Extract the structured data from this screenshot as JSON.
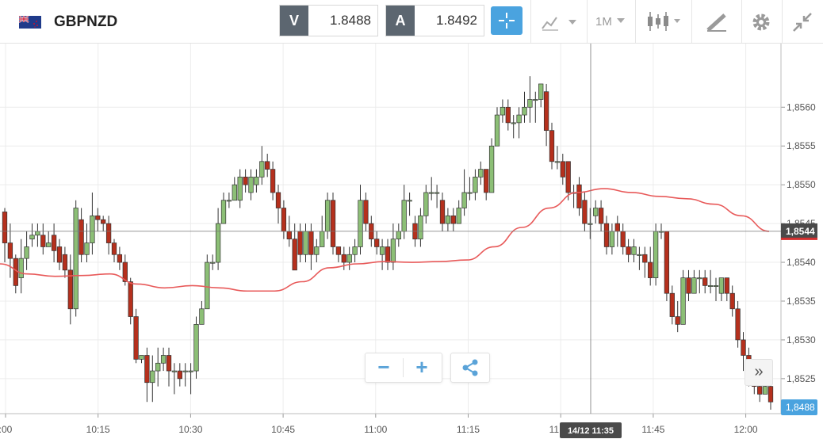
{
  "instrument": {
    "symbol": "GBPNZD",
    "flag_icon": "uk-nz-flag-icon"
  },
  "quote": {
    "sell": {
      "tag": "V",
      "value": "1.8488"
    },
    "buy": {
      "tag": "A",
      "value": "1.8492"
    }
  },
  "toolbar": {
    "timeframe": "1M",
    "icons": [
      "crosshair-icon",
      "line-chart-icon",
      "candlestick-icon",
      "drawing-icon",
      "gear-icon",
      "collapse-icon"
    ]
  },
  "colors": {
    "up": "#8cbf76",
    "down": "#b5301d",
    "ma": "#e85a5a",
    "accent": "#4aa3df",
    "current_tag": "#d32f2f"
  },
  "chart_data": {
    "type": "candlestick",
    "y_ticks": [
      "1,8560",
      "1,8555",
      "1,8550",
      "1,8545",
      "1,8540",
      "1,8535",
      "1,8530",
      "1,8525"
    ],
    "y_range": [
      1.8521,
      1.8568
    ],
    "x_ticks": [
      ":00",
      "10:15",
      "10:30",
      "10:45",
      "11:00",
      "11:15",
      "11:30",
      "11:45",
      "12:00"
    ],
    "crosshair_time": "14/12 11:35",
    "crosshair_price": "1,8544",
    "current_price": "1,8488",
    "ma_line": [
      1.85398,
      1.85385,
      1.85382,
      1.85383,
      1.85385,
      1.85372,
      1.85367,
      1.8537,
      1.85367,
      1.85363,
      1.85363,
      1.85375,
      1.85393,
      1.85398,
      1.85401,
      1.854,
      1.85401,
      1.85403,
      1.8542,
      1.85445,
      1.8547,
      1.8549,
      1.85495,
      1.8549,
      1.85485,
      1.85482,
      1.85475,
      1.8546,
      1.8544
    ],
    "candles": [
      [
        1.85465,
        1.85425,
        1.8547,
        1.854
      ],
      [
        1.85425,
        1.85405,
        1.8545,
        1.8538
      ],
      [
        1.85405,
        1.8537,
        1.8541,
        1.8536
      ],
      [
        1.8538,
        1.85405,
        1.8543,
        1.8536
      ],
      [
        1.85405,
        1.8542,
        1.8544,
        1.8539
      ],
      [
        1.8543,
        1.85435,
        1.8545,
        1.8542
      ],
      [
        1.85435,
        1.8544,
        1.8545,
        1.8542
      ],
      [
        1.85435,
        1.8542,
        1.8545,
        1.8541
      ],
      [
        1.8542,
        1.85425,
        1.8544,
        1.8542
      ],
      [
        1.85435,
        1.85415,
        1.8545,
        1.854
      ],
      [
        1.8542,
        1.854,
        1.8543,
        1.8539
      ],
      [
        1.8541,
        1.8539,
        1.8542,
        1.8538
      ],
      [
        1.8539,
        1.8534,
        1.8541,
        1.8532
      ],
      [
        1.8534,
        1.8547,
        1.8548,
        1.8533
      ],
      [
        1.85455,
        1.8541,
        1.8547,
        1.854
      ],
      [
        1.8541,
        1.85425,
        1.8545,
        1.854
      ],
      [
        1.85425,
        1.8546,
        1.8549,
        1.8541
      ],
      [
        1.8546,
        1.85455,
        1.8547,
        1.8544
      ],
      [
        1.85455,
        1.8545,
        1.8546,
        1.8544
      ],
      [
        1.8545,
        1.85425,
        1.8546,
        1.8541
      ],
      [
        1.85425,
        1.8541,
        1.8543,
        1.854
      ],
      [
        1.8541,
        1.854,
        1.8542,
        1.8539
      ],
      [
        1.854,
        1.85375,
        1.8541,
        1.8537
      ],
      [
        1.85375,
        1.8533,
        1.8538,
        1.8532
      ],
      [
        1.8533,
        1.85275,
        1.8534,
        1.8527
      ],
      [
        1.85275,
        1.8528,
        1.8528,
        1.8527
      ],
      [
        1.8528,
        1.85245,
        1.8529,
        1.8522
      ],
      [
        1.85245,
        1.8526,
        1.8528,
        1.8522
      ],
      [
        1.8526,
        1.8527,
        1.8529,
        1.8524
      ],
      [
        1.8527,
        1.8528,
        1.8529,
        1.8526
      ],
      [
        1.8528,
        1.8526,
        1.8529,
        1.8524
      ],
      [
        1.8526,
        1.8526,
        1.8527,
        1.8523
      ],
      [
        1.8526,
        1.8525,
        1.8527,
        1.8524
      ],
      [
        1.8526,
        1.8526,
        1.8527,
        1.8524
      ],
      [
        1.8526,
        1.8526,
        1.8527,
        1.8523
      ],
      [
        1.8526,
        1.8532,
        1.8533,
        1.8525
      ],
      [
        1.8532,
        1.8534,
        1.8535,
        1.8532
      ],
      [
        1.8534,
        1.854,
        1.8541,
        1.8534
      ],
      [
        1.854,
        1.854,
        1.8541,
        1.8539
      ],
      [
        1.854,
        1.8545,
        1.8547,
        1.8539
      ],
      [
        1.8545,
        1.8548,
        1.8549,
        1.8545
      ],
      [
        1.8548,
        1.8548,
        1.8549,
        1.8547
      ],
      [
        1.8548,
        1.855,
        1.8551,
        1.8548
      ],
      [
        1.8548,
        1.8551,
        1.8552,
        1.8547
      ],
      [
        1.8551,
        1.855,
        1.8552,
        1.8549
      ],
      [
        1.8549,
        1.8551,
        1.8552,
        1.8548
      ],
      [
        1.855,
        1.8551,
        1.8552,
        1.8549
      ],
      [
        1.8551,
        1.8553,
        1.8555,
        1.855
      ],
      [
        1.8553,
        1.8552,
        1.8554,
        1.8551
      ],
      [
        1.8552,
        1.8549,
        1.8553,
        1.8548
      ],
      [
        1.8549,
        1.8547,
        1.855,
        1.8545
      ],
      [
        1.8547,
        1.8544,
        1.8548,
        1.8543
      ],
      [
        1.8544,
        1.8543,
        1.8546,
        1.8542
      ],
      [
        1.8543,
        1.8539,
        1.8545,
        1.8539
      ],
      [
        1.8544,
        1.8541,
        1.8545,
        1.854
      ],
      [
        1.8541,
        1.8544,
        1.8545,
        1.854
      ],
      [
        1.8544,
        1.8541,
        1.8545,
        1.8539
      ],
      [
        1.8541,
        1.8542,
        1.8543,
        1.854
      ],
      [
        1.8542,
        1.8544,
        1.8546,
        1.8542
      ],
      [
        1.8544,
        1.8548,
        1.8549,
        1.8543
      ],
      [
        1.8548,
        1.8542,
        1.8549,
        1.8541
      ],
      [
        1.8542,
        1.8541,
        1.8542,
        1.854
      ],
      [
        1.8541,
        1.854,
        1.8542,
        1.8539
      ],
      [
        1.854,
        1.8541,
        1.8542,
        1.8539
      ],
      [
        1.8541,
        1.8542,
        1.8543,
        1.854
      ],
      [
        1.8542,
        1.8548,
        1.855,
        1.8541
      ],
      [
        1.8548,
        1.8545,
        1.8549,
        1.8544
      ],
      [
        1.8545,
        1.8543,
        1.8546,
        1.8542
      ],
      [
        1.8543,
        1.8542,
        1.8544,
        1.8541
      ],
      [
        1.8541,
        1.8542,
        1.8543,
        1.8539
      ],
      [
        1.8542,
        1.854,
        1.8543,
        1.8539
      ],
      [
        1.854,
        1.8543,
        1.8545,
        1.8539
      ],
      [
        1.8543,
        1.8544,
        1.8545,
        1.8542
      ],
      [
        1.8544,
        1.8548,
        1.855,
        1.8543
      ],
      [
        1.8548,
        1.8548,
        1.8549,
        1.8546
      ],
      [
        1.8545,
        1.8543,
        1.8546,
        1.8542
      ],
      [
        1.8543,
        1.8546,
        1.8547,
        1.8542
      ],
      [
        1.8546,
        1.8549,
        1.855,
        1.8545
      ],
      [
        1.8549,
        1.8549,
        1.8551,
        1.8548
      ],
      [
        1.8549,
        1.8549,
        1.855,
        1.8547
      ],
      [
        1.8548,
        1.8545,
        1.8549,
        1.8544
      ],
      [
        1.8545,
        1.8546,
        1.8547,
        1.8544
      ],
      [
        1.8546,
        1.8545,
        1.8547,
        1.8544
      ],
      [
        1.8545,
        1.8547,
        1.8548,
        1.8545
      ],
      [
        1.8547,
        1.8549,
        1.8552,
        1.8546
      ],
      [
        1.8549,
        1.8549,
        1.8551,
        1.8548
      ],
      [
        1.8549,
        1.8551,
        1.8552,
        1.8548
      ],
      [
        1.8551,
        1.8552,
        1.8553,
        1.855
      ],
      [
        1.8552,
        1.8549,
        1.8552,
        1.8548
      ],
      [
        1.8549,
        1.8555,
        1.8556,
        1.8549
      ],
      [
        1.8555,
        1.8559,
        1.856,
        1.8555
      ],
      [
        1.8559,
        1.856,
        1.8561,
        1.8558
      ],
      [
        1.856,
        1.8558,
        1.8561,
        1.8557
      ],
      [
        1.8558,
        1.8558,
        1.8559,
        1.8556
      ],
      [
        1.8558,
        1.8559,
        1.856,
        1.8556
      ],
      [
        1.8559,
        1.856,
        1.8562,
        1.8558
      ],
      [
        1.856,
        1.8561,
        1.8564,
        1.8558
      ],
      [
        1.8561,
        1.8561,
        1.8562,
        1.8558
      ],
      [
        1.8561,
        1.8563,
        1.8563,
        1.856
      ],
      [
        1.8562,
        1.8557,
        1.8563,
        1.8555
      ],
      [
        1.8557,
        1.8553,
        1.8558,
        1.8552
      ],
      [
        1.8553,
        1.8553,
        1.8555,
        1.8552
      ],
      [
        1.8553,
        1.8551,
        1.8554,
        1.855
      ],
      [
        1.8553,
        1.8549,
        1.8553,
        1.8548
      ],
      [
        1.8549,
        1.8549,
        1.855,
        1.8547
      ],
      [
        1.855,
        1.8547,
        1.8551,
        1.8546
      ],
      [
        1.8548,
        1.8545,
        1.8549,
        1.8544
      ],
      [
        1.8545,
        1.8545,
        1.8547,
        1.8543
      ],
      [
        1.8546,
        1.8547,
        1.8548,
        1.8545
      ],
      [
        1.8547,
        1.8545,
        1.8548,
        1.8544
      ],
      [
        1.8545,
        1.8542,
        1.8546,
        1.8541
      ],
      [
        1.8542,
        1.8544,
        1.8545,
        1.8541
      ],
      [
        1.8545,
        1.8544,
        1.8546,
        1.8542
      ],
      [
        1.8544,
        1.8542,
        1.8545,
        1.8541
      ],
      [
        1.8542,
        1.8541,
        1.8543,
        1.854
      ],
      [
        1.8541,
        1.8542,
        1.8543,
        1.854
      ],
      [
        1.8541,
        1.8541,
        1.8542,
        1.8539
      ],
      [
        1.8541,
        1.854,
        1.8542,
        1.8538
      ],
      [
        1.854,
        1.8538,
        1.8542,
        1.8537
      ],
      [
        1.8538,
        1.8544,
        1.8545,
        1.8537
      ],
      [
        1.8544,
        1.8544,
        1.8545,
        1.8543
      ],
      [
        1.8544,
        1.8536,
        1.8544,
        1.8535
      ],
      [
        1.8536,
        1.8533,
        1.8537,
        1.8532
      ],
      [
        1.8533,
        1.8532,
        1.8535,
        1.8531
      ],
      [
        1.8532,
        1.8538,
        1.8539,
        1.8532
      ],
      [
        1.8538,
        1.8536,
        1.8539,
        1.8535
      ],
      [
        1.8536,
        1.8538,
        1.8539,
        1.8536
      ],
      [
        1.8538,
        1.8538,
        1.8539,
        1.8536
      ],
      [
        1.8538,
        1.8537,
        1.8539,
        1.8536
      ],
      [
        1.8537,
        1.8537,
        1.8539,
        1.8536
      ],
      [
        1.8537,
        1.8537,
        1.8538,
        1.8535
      ],
      [
        1.8536,
        1.8538,
        1.8538,
        1.8535
      ],
      [
        1.8538,
        1.8536,
        1.8538,
        1.8535
      ],
      [
        1.8536,
        1.8534,
        1.8537,
        1.8533
      ],
      [
        1.8534,
        1.853,
        1.8535,
        1.8529
      ],
      [
        1.853,
        1.8528,
        1.8531,
        1.8526
      ],
      [
        1.8528,
        1.8526,
        1.8529,
        1.8524
      ],
      [
        1.8526,
        1.8524,
        1.8527,
        1.8523
      ],
      [
        1.8524,
        1.8523,
        1.8525,
        1.8522
      ],
      [
        1.8523,
        1.8524,
        1.8525,
        1.8523
      ],
      [
        1.8524,
        1.8522,
        1.8525,
        1.8521
      ]
    ]
  },
  "controls": {
    "zoom_out": "−",
    "zoom_in": "+",
    "share_icon": "share-icon",
    "scroll_right": "»"
  }
}
